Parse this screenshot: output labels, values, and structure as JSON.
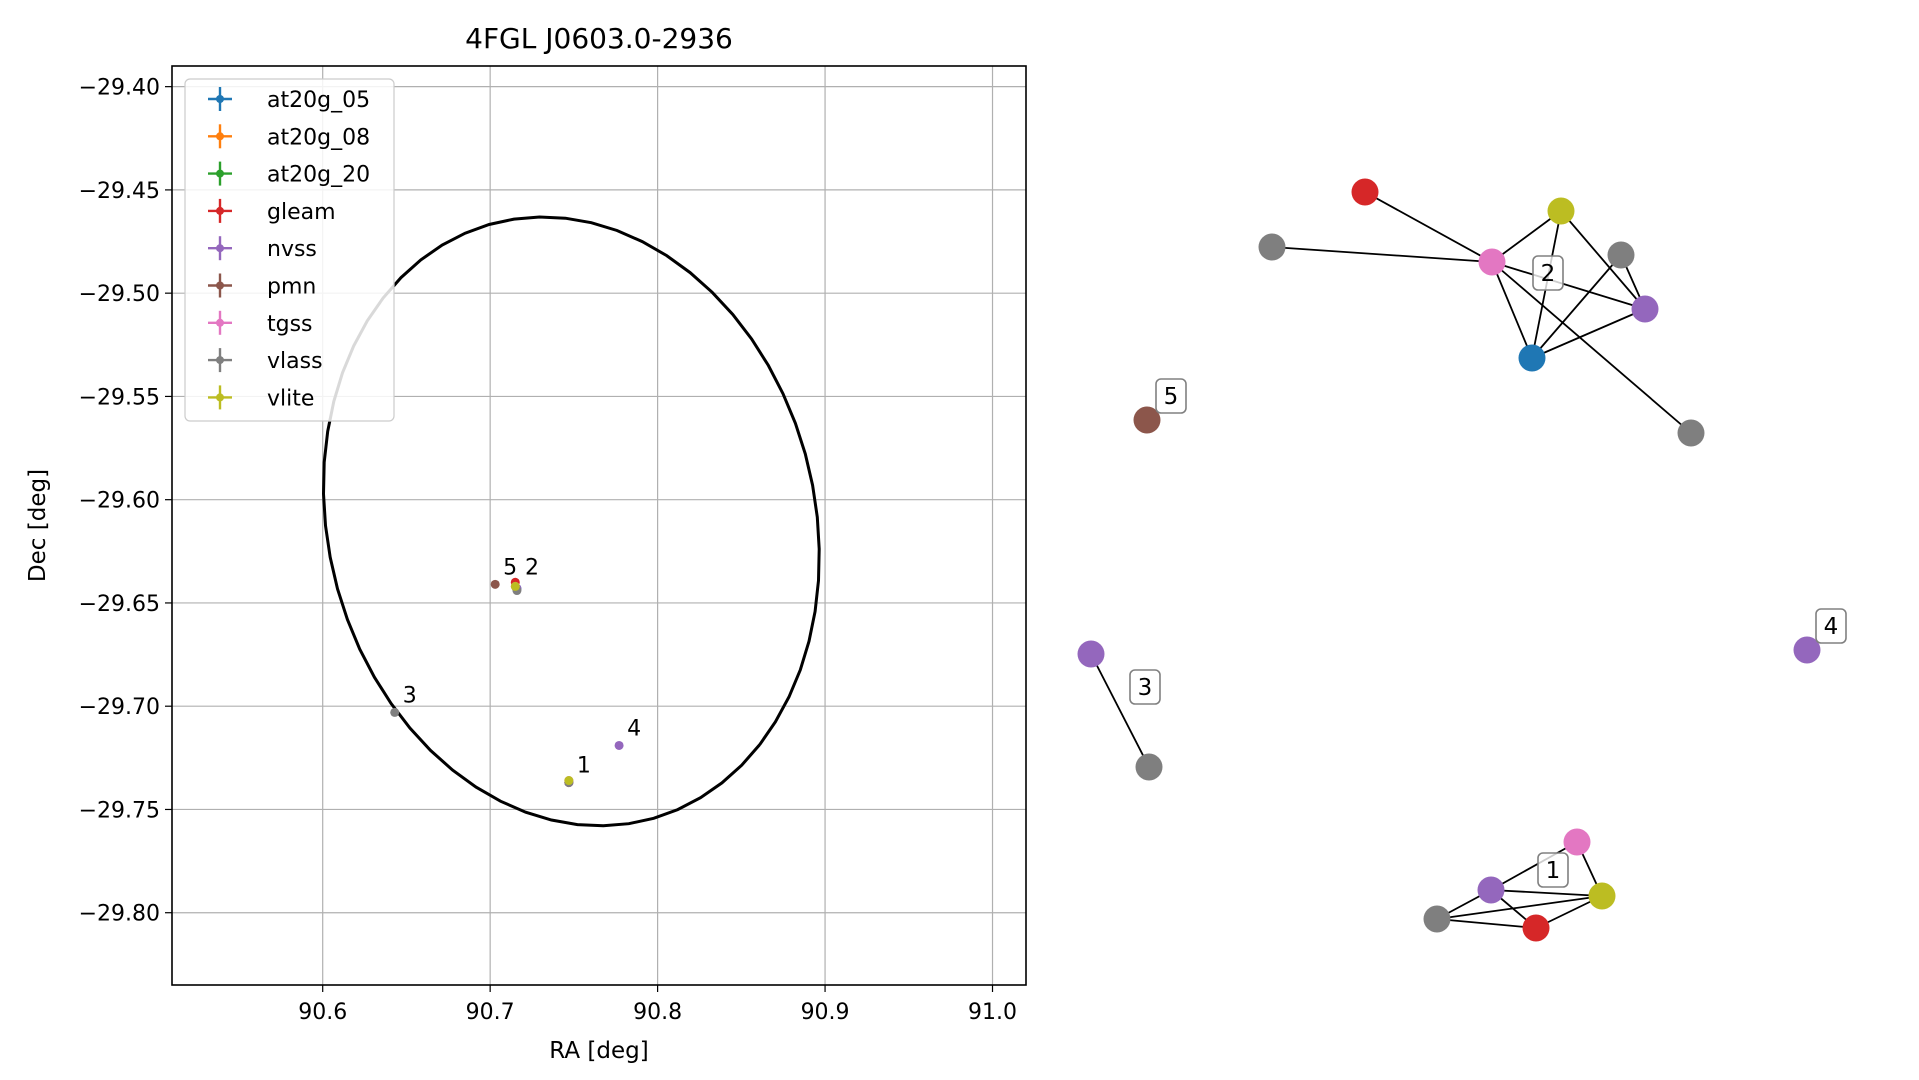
{
  "chart_data": [
    {
      "type": "scatter",
      "title": "4FGL J0603.0-2936",
      "xlabel": "RA [deg]",
      "ylabel": "Dec [deg]",
      "xlim": [
        90.51,
        91.02
      ],
      "ylim": [
        -29.835,
        -29.39
      ],
      "xticks": [
        90.6,
        90.7,
        90.8,
        90.9,
        91.0
      ],
      "xtick_labels": [
        "90.6",
        "90.7",
        "90.8",
        "90.9",
        "91.0"
      ],
      "yticks": [
        -29.4,
        -29.45,
        -29.5,
        -29.55,
        -29.6,
        -29.65,
        -29.7,
        -29.75,
        -29.8
      ],
      "ytick_labels": [
        "−29.40",
        "−29.45",
        "−29.50",
        "−29.55",
        "−29.60",
        "−29.65",
        "−29.70",
        "−29.75",
        "−29.80"
      ],
      "grid": true,
      "legend_position": "top-left",
      "series": [
        {
          "name": "at20g_05",
          "color": "#1f77b4",
          "points": [
            [
              90.716,
              -29.643
            ]
          ]
        },
        {
          "name": "at20g_08",
          "color": "#ff7f0e",
          "points": []
        },
        {
          "name": "at20g_20",
          "color": "#2ca02c",
          "points": []
        },
        {
          "name": "gleam",
          "color": "#d62728",
          "points": [
            [
              90.715,
              -29.64
            ],
            [
              90.747,
              -29.737
            ]
          ]
        },
        {
          "name": "nvss",
          "color": "#9467bd",
          "points": [
            [
              90.716,
              -29.643
            ],
            [
              90.747,
              -29.737
            ],
            [
              90.777,
              -29.719
            ]
          ]
        },
        {
          "name": "pmn",
          "color": "#8c564b",
          "points": [
            [
              90.703,
              -29.641
            ]
          ]
        },
        {
          "name": "tgss",
          "color": "#e377c2",
          "points": [
            [
              90.715,
              -29.642
            ],
            [
              90.747,
              -29.736
            ]
          ]
        },
        {
          "name": "vlass",
          "color": "#7f7f7f",
          "points": [
            [
              90.716,
              -29.644
            ],
            [
              90.747,
              -29.737
            ],
            [
              90.643,
              -29.703
            ]
          ]
        },
        {
          "name": "vlite",
          "color": "#bcbd22",
          "points": [
            [
              90.715,
              -29.642
            ],
            [
              90.747,
              -29.736
            ]
          ]
        }
      ],
      "ellipse": {
        "center": [
          90.7485,
          -29.6105
        ],
        "rx": 0.156,
        "ry": 0.139,
        "angle_deg": -43.9,
        "color": "#000000"
      },
      "annotations": [
        {
          "text": "5",
          "x": 90.703,
          "y": -29.641
        },
        {
          "text": "2",
          "x": 90.716,
          "y": -29.641
        },
        {
          "text": "3",
          "x": 90.643,
          "y": -29.703
        },
        {
          "text": "4",
          "x": 90.777,
          "y": -29.719
        },
        {
          "text": "1",
          "x": 90.747,
          "y": -29.737
        }
      ]
    },
    {
      "type": "network",
      "groups": [
        "1",
        "2",
        "3",
        "4",
        "5"
      ],
      "nodes": [
        {
          "id": "g2_gleam",
          "catalog": "gleam",
          "group": "2",
          "color": "#d62728"
        },
        {
          "id": "g2_vlite",
          "catalog": "vlite",
          "group": "2",
          "color": "#bcbd22"
        },
        {
          "id": "g2_vlass_a",
          "catalog": "vlass",
          "group": "2",
          "color": "#7f7f7f"
        },
        {
          "id": "g2_tgss",
          "catalog": "tgss",
          "group": "2",
          "color": "#e377c2"
        },
        {
          "id": "g2_vlass_b",
          "catalog": "vlass",
          "group": "2",
          "color": "#7f7f7f"
        },
        {
          "id": "g2_nvss",
          "catalog": "nvss",
          "group": "2",
          "color": "#9467bd"
        },
        {
          "id": "g2_at20g",
          "catalog": "at20g_05",
          "group": "2",
          "color": "#1f77b4"
        },
        {
          "id": "g2_vlass_c",
          "catalog": "vlass",
          "group": "2",
          "color": "#7f7f7f"
        },
        {
          "id": "g5_pmn",
          "catalog": "pmn",
          "group": "5",
          "color": "#8c564b"
        },
        {
          "id": "g3_nvss",
          "catalog": "nvss",
          "group": "3",
          "color": "#9467bd"
        },
        {
          "id": "g3_vlass",
          "catalog": "vlass",
          "group": "3",
          "color": "#7f7f7f"
        },
        {
          "id": "g4_nvss",
          "catalog": "nvss",
          "group": "4",
          "color": "#9467bd"
        },
        {
          "id": "g1_tgss",
          "catalog": "tgss",
          "group": "1",
          "color": "#e377c2"
        },
        {
          "id": "g1_nvss",
          "catalog": "nvss",
          "group": "1",
          "color": "#9467bd"
        },
        {
          "id": "g1_vlite",
          "catalog": "vlite",
          "group": "1",
          "color": "#bcbd22"
        },
        {
          "id": "g1_vlass",
          "catalog": "vlass",
          "group": "1",
          "color": "#7f7f7f"
        },
        {
          "id": "g1_gleam",
          "catalog": "gleam",
          "group": "1",
          "color": "#d62728"
        }
      ],
      "edges": [
        [
          "g2_gleam",
          "g2_tgss"
        ],
        [
          "g2_vlass_a",
          "g2_tgss"
        ],
        [
          "g2_tgss",
          "g2_vlite"
        ],
        [
          "g2_tgss",
          "g2_nvss"
        ],
        [
          "g2_tgss",
          "g2_at20g"
        ],
        [
          "g2_tgss",
          "g2_vlass_c"
        ],
        [
          "g2_vlite",
          "g2_nvss"
        ],
        [
          "g2_vlite",
          "g2_at20g"
        ],
        [
          "g2_vlass_b",
          "g2_nvss"
        ],
        [
          "g2_vlass_b",
          "g2_at20g"
        ],
        [
          "g2_nvss",
          "g2_at20g"
        ],
        [
          "g3_nvss",
          "g3_vlass"
        ],
        [
          "g1_tgss",
          "g1_nvss"
        ],
        [
          "g1_tgss",
          "g1_vlite"
        ],
        [
          "g1_nvss",
          "g1_vlite"
        ],
        [
          "g1_nvss",
          "g1_vlass"
        ],
        [
          "g1_nvss",
          "g1_gleam"
        ],
        [
          "g1_vlass",
          "g1_vlite"
        ],
        [
          "g1_vlass",
          "g1_gleam"
        ],
        [
          "g1_gleam",
          "g1_vlite"
        ]
      ]
    }
  ]
}
